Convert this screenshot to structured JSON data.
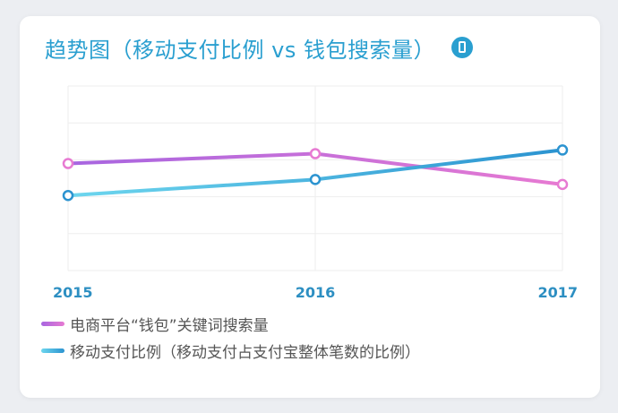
{
  "title": "趋势图（移动支付比例 vs 钱包搜索量）",
  "icon": "phone-icon",
  "colors": {
    "accent": "#2a9fd0",
    "wallet_series": "#a765e0",
    "wallet_series_end": "#e77ad2",
    "mobile_series": "#6dd6ee",
    "mobile_series_end": "#2b93d0",
    "grid": "#eeeeee"
  },
  "chart_data": {
    "type": "line",
    "x": [
      "2015",
      "2016",
      "2017"
    ],
    "series": [
      {
        "name": "电商平台“钱包”关键词搜索量",
        "values": [
          0.57,
          0.65,
          0.4
        ]
      },
      {
        "name": "移动支付比例（移动支付占支付宝整体笔数的比例）",
        "values": [
          0.31,
          0.44,
          0.68
        ]
      }
    ],
    "ylim": [
      -0.3,
      1.2
    ],
    "grid": true,
    "legend": "bottom",
    "ylabel": "",
    "xlabel": ""
  },
  "legend": [
    {
      "label": "电商平台“钱包”关键词搜索量"
    },
    {
      "label": "移动支付比例（移动支付占支付宝整体笔数的比例）"
    }
  ]
}
